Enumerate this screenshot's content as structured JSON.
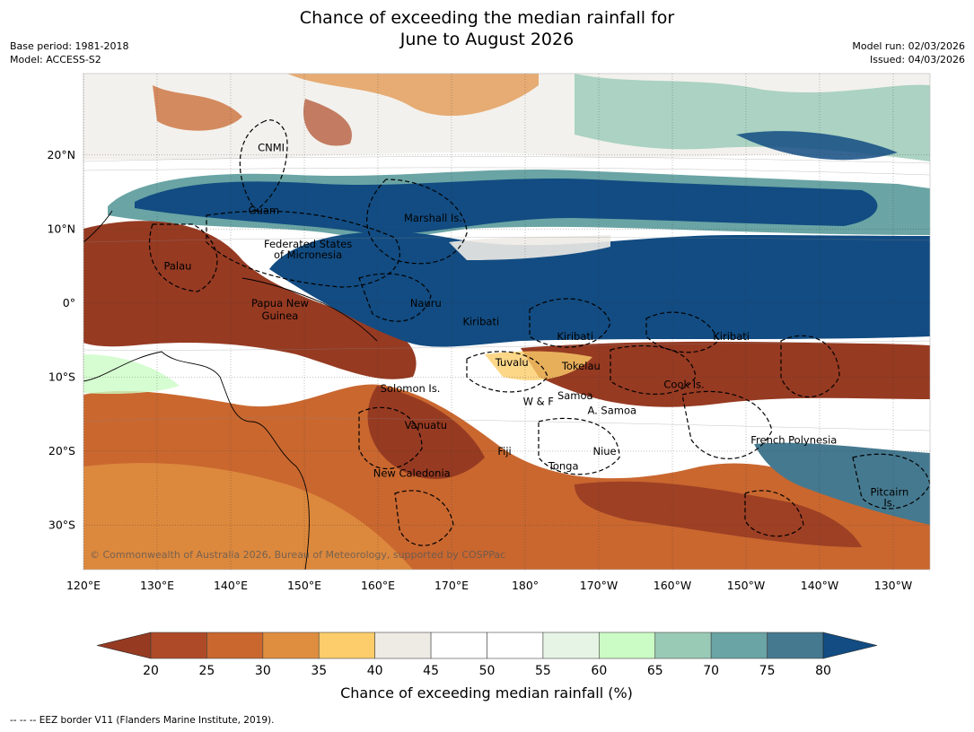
{
  "title": {
    "line1": "Chance of exceeding the median rainfall for",
    "line2": "June to August 2026"
  },
  "meta": {
    "base_period": "Base period: 1981-2018",
    "model": "Model: ACCESS-S2",
    "model_run": "Model run: 02/03/2026",
    "issued": "Issued: 04/03/2026"
  },
  "map": {
    "lon_range": [
      120,
      235
    ],
    "lat_range": [
      -36,
      31
    ],
    "lon_ticks": [
      {
        "value": 120,
        "label": "120°E"
      },
      {
        "value": 130,
        "label": "130°E"
      },
      {
        "value": 140,
        "label": "140°E"
      },
      {
        "value": 150,
        "label": "150°E"
      },
      {
        "value": 160,
        "label": "160°E"
      },
      {
        "value": 170,
        "label": "170°E"
      },
      {
        "value": 180,
        "label": "180°"
      },
      {
        "value": 190,
        "label": "170°W"
      },
      {
        "value": 200,
        "label": "160°W"
      },
      {
        "value": 210,
        "label": "150°W"
      },
      {
        "value": 220,
        "label": "140°W"
      },
      {
        "value": 230,
        "label": "130°W"
      }
    ],
    "lat_ticks": [
      {
        "value": 20,
        "label": "20°N"
      },
      {
        "value": 10,
        "label": "10°N"
      },
      {
        "value": 0,
        "label": "0°"
      },
      {
        "value": -10,
        "label": "10°S"
      },
      {
        "value": -20,
        "label": "20°S"
      },
      {
        "value": -30,
        "label": "30°S"
      }
    ],
    "regions": [
      {
        "name": "CNMI",
        "lon": 145.5,
        "lat": 21
      },
      {
        "name": "Guam",
        "lon": 144.5,
        "lat": 12.5
      },
      {
        "name": "Marshall Is.",
        "lon": 167.5,
        "lat": 11.5
      },
      {
        "name": "Federated States",
        "lon": 150.5,
        "lat": 8
      },
      {
        "name": "of Micronesia",
        "lon": 150.5,
        "lat": 6.5
      },
      {
        "name": "Palau",
        "lon": 132.8,
        "lat": 5
      },
      {
        "name": "Papua New",
        "lon": 146.7,
        "lat": 0
      },
      {
        "name": "Guinea",
        "lon": 146.7,
        "lat": -1.7
      },
      {
        "name": "Nauru",
        "lon": 166.5,
        "lat": 0
      },
      {
        "name": "Kiribati",
        "lon": 174,
        "lat": -2.5
      },
      {
        "name": "Kiribati",
        "lon": 186.8,
        "lat": -4.5
      },
      {
        "name": "Kiribati",
        "lon": 208,
        "lat": -4.5
      },
      {
        "name": "Tuvalu",
        "lon": 178.2,
        "lat": -8
      },
      {
        "name": "Tokelau",
        "lon": 187.6,
        "lat": -8.5
      },
      {
        "name": "Cook Is.",
        "lon": 201.6,
        "lat": -11
      },
      {
        "name": "Solomon Is.",
        "lon": 164.4,
        "lat": -11.5
      },
      {
        "name": "Samoa",
        "lon": 186.8,
        "lat": -12.5
      },
      {
        "name": "W & F",
        "lon": 181.8,
        "lat": -13.3
      },
      {
        "name": "A. Samoa",
        "lon": 191.8,
        "lat": -14.5
      },
      {
        "name": "Vanuatu",
        "lon": 166.5,
        "lat": -16.5
      },
      {
        "name": "French Polynesia",
        "lon": 216.5,
        "lat": -18.5
      },
      {
        "name": "Fiji",
        "lon": 177.2,
        "lat": -20
      },
      {
        "name": "Niue",
        "lon": 190.8,
        "lat": -20
      },
      {
        "name": "Tonga",
        "lon": 185.2,
        "lat": -22
      },
      {
        "name": "New Caledonia",
        "lon": 164.6,
        "lat": -23
      },
      {
        "name": "Pitcairn",
        "lon": 229.5,
        "lat": -25.5
      },
      {
        "name": "Is.",
        "lon": 229.5,
        "lat": -27
      }
    ],
    "copyright": "© Commonwealth of Australia 2026, Bureau of Meteorology, supported by COSPPac"
  },
  "colorbar": {
    "title": "Chance of exceeding median rainfall (%)",
    "ticks": [
      "20",
      "25",
      "30",
      "35",
      "40",
      "45",
      "50",
      "55",
      "60",
      "65",
      "70",
      "75",
      "80"
    ],
    "below_color": "#963a22",
    "colors": [
      "#ae4a27",
      "#c9672f",
      "#df8e40",
      "#fccd6a",
      "#eeebe5",
      "#ffffff",
      "#ffffff",
      "#e6f4e5",
      "#ccfcc6",
      "#99cab6",
      "#6aa4a4",
      "#45798f"
    ],
    "above_color": "#124c82"
  },
  "footer": "--  --  -- EEZ border V11 (Flanders Marine Institute, 2019)."
}
